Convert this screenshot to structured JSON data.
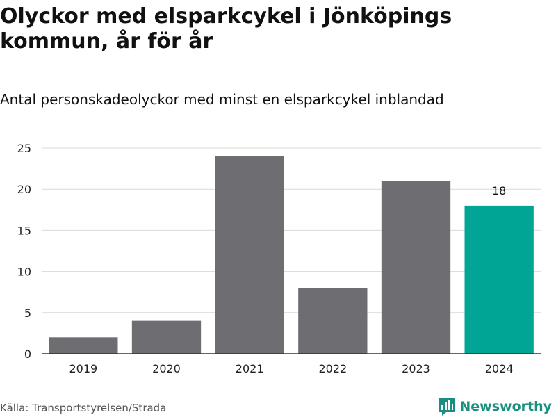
{
  "header": {
    "title": "Olyckor med elsparkcykel i Jönköpings kommun, år för år",
    "subtitle": "Antal personskadeolyckor med minst en elsparkcykel inblandad"
  },
  "footer": {
    "source": "Källa: Transportstyrelsen/Strada",
    "brand": "Newsworthy"
  },
  "colors": {
    "bar": "#6e6d72",
    "highlight": "#00a596",
    "grid": "#d9d9d9",
    "axis": "#333333",
    "brand": "#1a8f80"
  },
  "chart_data": {
    "type": "bar",
    "title": "Olyckor med elsparkcykel i Jönköpings kommun, år för år",
    "subtitle": "Antal personskadeolyckor med minst en elsparkcykel inblandad",
    "categories": [
      "2019",
      "2020",
      "2021",
      "2022",
      "2023",
      "2024"
    ],
    "values": [
      2,
      4,
      24,
      8,
      21,
      18
    ],
    "highlight_index": 5,
    "data_labels": [
      null,
      null,
      null,
      null,
      null,
      "18"
    ],
    "ylim": [
      0,
      25
    ],
    "yticks": [
      0,
      5,
      10,
      15,
      20,
      25
    ],
    "grid": true,
    "xlabel": "",
    "ylabel": ""
  }
}
